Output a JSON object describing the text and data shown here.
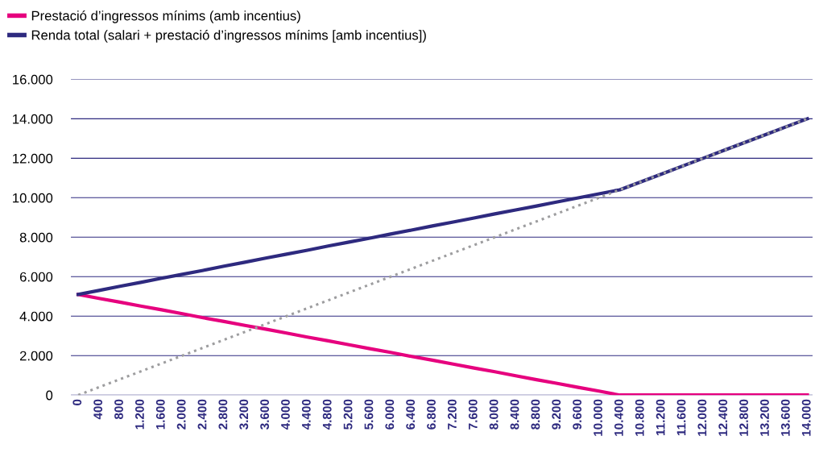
{
  "chart_data": {
    "type": "line",
    "categories": [
      "0",
      "400",
      "800",
      "1.200",
      "1.600",
      "2.000",
      "2.400",
      "2.800",
      "3.200",
      "3.600",
      "4.000",
      "4.400",
      "4.800",
      "5.200",
      "5.600",
      "6.000",
      "6.400",
      "6.800",
      "7.200",
      "7.600",
      "8.000",
      "8.400",
      "8.800",
      "9.200",
      "9.600",
      "10.000",
      "10.400",
      "10.800",
      "11.200",
      "11.600",
      "12.000",
      "12.400",
      "12.800",
      "13.200",
      "13.600",
      "14.000"
    ],
    "series": [
      {
        "name": "Prestació d’ingressos mínims (amb incentius)",
        "color": "#e6007e",
        "line_style": "solid",
        "values": [
          5100,
          4900,
          4710,
          4510,
          4320,
          4120,
          3920,
          3730,
          3530,
          3340,
          3140,
          2940,
          2750,
          2550,
          2350,
          2160,
          1960,
          1770,
          1570,
          1370,
          1180,
          980,
          780,
          590,
          390,
          200,
          0,
          0,
          0,
          0,
          0,
          0,
          0,
          0,
          0,
          0
        ]
      },
      {
        "name": "Renda total (salari + prestació d’ingressos mínims [amb incentius])",
        "color": "#2e2a7f",
        "line_style": "solid",
        "values": [
          5100,
          5300,
          5510,
          5710,
          5920,
          6120,
          6320,
          6530,
          6730,
          6940,
          7140,
          7340,
          7550,
          7750,
          7950,
          8160,
          8360,
          8570,
          8770,
          8970,
          9180,
          9380,
          9580,
          9790,
          9990,
          10200,
          10400,
          10800,
          11200,
          11600,
          12000,
          12400,
          12800,
          13200,
          13600,
          14000
        ]
      },
      {
        "color": "#9d9d9f",
        "line_style": "dotted",
        "values": [
          0,
          400,
          800,
          1200,
          1600,
          2000,
          2400,
          2800,
          3200,
          3600,
          4000,
          4400,
          4800,
          5200,
          5600,
          6000,
          6400,
          6800,
          7200,
          7600,
          8000,
          8400,
          8800,
          9200,
          9600,
          10000,
          10400,
          10800,
          11200,
          11600,
          12000,
          12400,
          12800,
          13200,
          13600,
          14000
        ]
      }
    ],
    "ylim": [
      0,
      16000
    ],
    "yticks": [
      {
        "value": 0,
        "label": "0"
      },
      {
        "value": 2000,
        "label": "2.000"
      },
      {
        "value": 4000,
        "label": "4.000"
      },
      {
        "value": 6000,
        "label": "6.000"
      },
      {
        "value": 8000,
        "label": "8.000"
      },
      {
        "value": 10000,
        "label": "10.000"
      },
      {
        "value": 12000,
        "label": "12.000"
      },
      {
        "value": 14000,
        "label": "14.000"
      },
      {
        "value": 16000,
        "label": "16.000"
      }
    ],
    "grid": "y",
    "legend": "top left",
    "marker": "none"
  }
}
